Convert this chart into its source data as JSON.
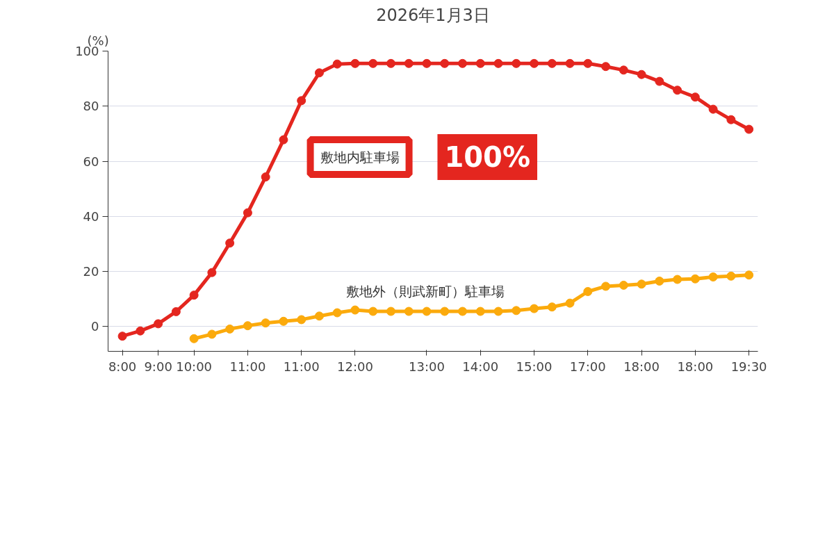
{
  "chart_data": {
    "type": "line",
    "title": "2026年1月3日",
    "ylabel": "(%)",
    "categories": [
      "8:00",
      null,
      "9:00",
      null,
      "10:00",
      null,
      null,
      "11:00",
      null,
      null,
      "11:00",
      null,
      null,
      "12:00",
      null,
      null,
      null,
      "13:00",
      null,
      null,
      "14:00",
      null,
      null,
      "15:00",
      null,
      null,
      "17:00",
      null,
      null,
      "18:00",
      null,
      null,
      "18:00",
      null,
      null,
      "19:30"
    ],
    "ylim": [
      -9,
      100
    ],
    "yticks": [
      0,
      20,
      40,
      60,
      80,
      100
    ],
    "grid": "y",
    "marker": "circle",
    "line_style": "solid",
    "annotations": [
      "100%"
    ],
    "series": [
      {
        "name": "敷地内駐車場",
        "color": "#e4261f",
        "values": [
          -3.5,
          -1.6,
          1,
          5.4,
          11.4,
          19.6,
          30.3,
          41.3,
          54.3,
          67.8,
          82,
          92.1,
          95.3,
          95.5,
          95.5,
          95.5,
          95.5,
          95.5,
          95.5,
          95.5,
          95.5,
          95.5,
          95.5,
          95.5,
          95.5,
          95.5,
          95.5,
          94.4,
          93.1,
          91.5,
          89,
          85.8,
          83.3,
          78.9,
          75.1,
          71.6
        ]
      },
      {
        "name": "敷地外（則武新町）駐車場",
        "color": "#fbaa0c",
        "values": [
          null,
          null,
          null,
          null,
          -4.4,
          -2.8,
          -0.9,
          0.3,
          1.3,
          1.9,
          2.5,
          3.8,
          5,
          6,
          5.5,
          5.5,
          5.5,
          5.5,
          5.5,
          5.5,
          5.5,
          5.5,
          5.8,
          6.5,
          7.1,
          8.5,
          12.7,
          14.6,
          15,
          15.4,
          16.5,
          17.1,
          17.3,
          18,
          18.3,
          18.7
        ]
      }
    ]
  }
}
